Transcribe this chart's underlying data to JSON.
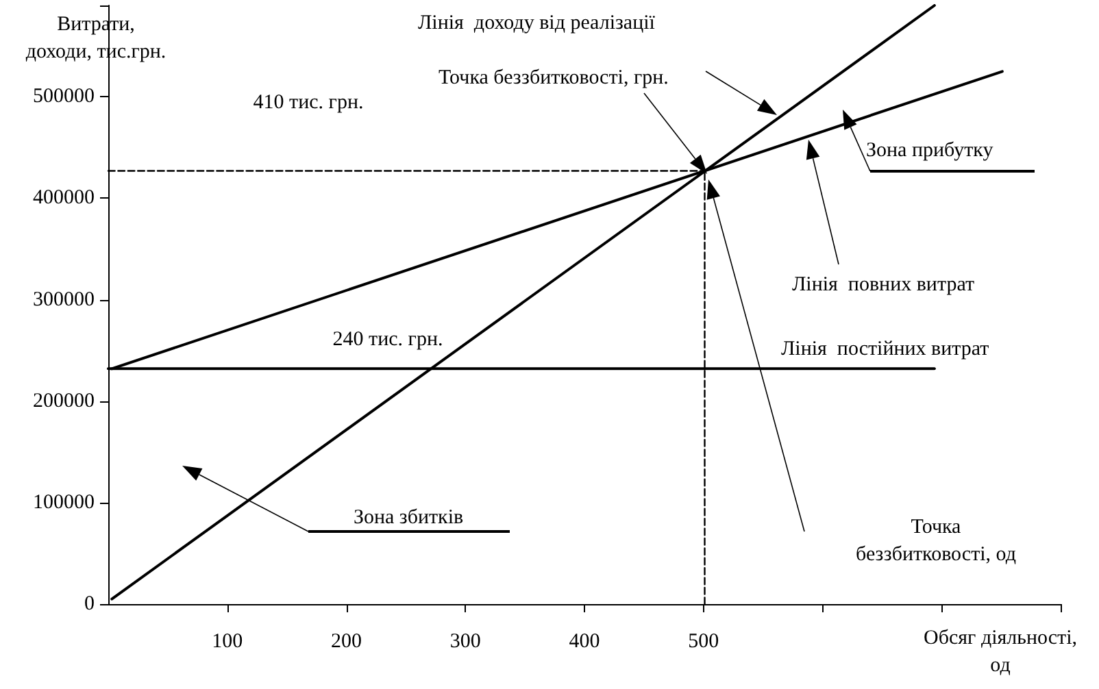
{
  "chart_data": {
    "type": "line",
    "xlabel": "Обсяг діяльності,\nод",
    "ylabel": "Витрати,\nдоходи, тис.грн.",
    "xlim": [
      0,
      800
    ],
    "xticks": [
      100,
      200,
      300,
      400,
      500,
      {
        "value": 600,
        "label": null
      },
      {
        "value": 700,
        "label": null
      },
      {
        "value": 800,
        "label": null
      }
    ],
    "ylim": [
      0,
      590000
    ],
    "yticks": [
      0,
      100000,
      200000,
      300000,
      400000,
      500000
    ],
    "grid": false,
    "marker": "none",
    "series": [
      {
        "color": "#000000",
        "x": [
          3,
          694
        ],
        "values": [
          5000,
          590000
        ]
      },
      {
        "color": "#000000",
        "x": [
          3,
          751
        ],
        "values": [
          232000,
          525000
        ]
      },
      {
        "color": "#000000",
        "x": [
          0,
          694
        ],
        "values": [
          232000,
          232000
        ]
      },
      {
        "color": "#000000",
        "line_style": "dashed",
        "x": [
          0,
          501
        ],
        "values": [
          427000,
          427000
        ]
      },
      {
        "color": "#000000",
        "line_style": "dashed",
        "x": [
          501,
          501
        ],
        "values": [
          0,
          427000
        ]
      }
    ],
    "annotations": [
      "Лінія  доходу від реалізації",
      "Точка беззбитковості, грн.",
      "410 тис. грн.",
      "Зона прибутку",
      "Лінія  повних витрат",
      "Лінія  постійних витрат",
      "240 тис. грн.",
      "Точка\nбеззбитковості, од",
      "Зона збитків"
    ]
  }
}
